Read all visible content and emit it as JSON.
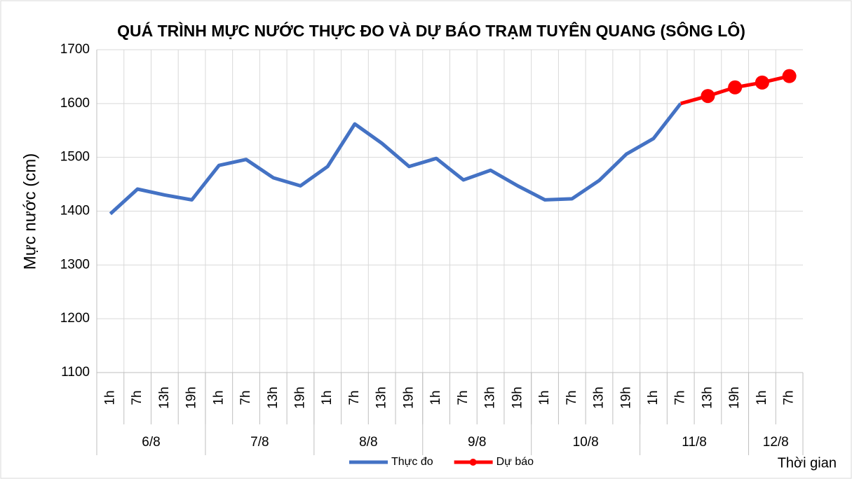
{
  "chart_data": {
    "type": "line",
    "title": "QUÁ TRÌNH MỰC NƯỚC THỰC ĐO VÀ DỰ BÁO TRẠM TUYÊN QUANG (SÔNG LÔ)",
    "y_label": "Mực nước (cm)",
    "x_label": "Thời gian",
    "category_groups": [
      {
        "name": "6/8",
        "categories": [
          "1h",
          "7h",
          "13h",
          "19h"
        ]
      },
      {
        "name": "7/8",
        "categories": [
          "1h",
          "7h",
          "13h",
          "19h"
        ]
      },
      {
        "name": "8/8",
        "categories": [
          "1h",
          "7h",
          "13h",
          "19h"
        ]
      },
      {
        "name": "9/8",
        "categories": [
          "1h",
          "7h",
          "13h",
          "19h"
        ]
      },
      {
        "name": "10/8",
        "categories": [
          "1h",
          "7h",
          "13h",
          "19h"
        ]
      },
      {
        "name": "11/8",
        "categories": [
          "1h",
          "7h",
          "13h",
          "19h"
        ]
      },
      {
        "name": "12/8",
        "categories": [
          "1h",
          "7h"
        ]
      }
    ],
    "series": [
      {
        "name": "Thực đo",
        "color": "#4472c4",
        "marker": false,
        "values": [
          1395,
          1441,
          1430,
          1421,
          1485,
          1496,
          1462,
          1447,
          1483,
          1562,
          1526,
          1483,
          1498,
          1458,
          1476,
          1447,
          1421,
          1423,
          1457,
          1506,
          1535,
          1600,
          null,
          null,
          null,
          null
        ]
      },
      {
        "name": "Dự báo",
        "color": "#ff0000",
        "marker": true,
        "values": [
          null,
          null,
          null,
          null,
          null,
          null,
          null,
          null,
          null,
          null,
          null,
          null,
          null,
          null,
          null,
          null,
          null,
          null,
          null,
          null,
          null,
          1600,
          1614,
          1630,
          1639,
          1651
        ]
      }
    ],
    "ylim": [
      1100,
      1700
    ],
    "yticks": [
      1100,
      1200,
      1300,
      1400,
      1500,
      1600,
      1700
    ],
    "grid": true,
    "legend": "bottom"
  }
}
